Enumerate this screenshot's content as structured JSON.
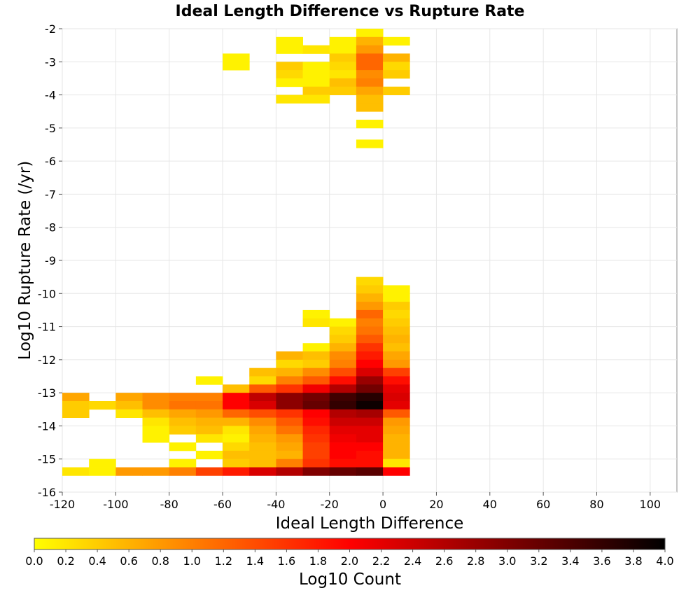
{
  "chart_data": {
    "type": "heatmap",
    "title": "Ideal Length Difference vs Rupture Rate",
    "xlabel": "Ideal Length Difference",
    "ylabel": "Log10 Rupture Rate (/yr)",
    "xlim": [
      -120,
      110
    ],
    "ylim": [
      -16,
      -2
    ],
    "x_ticks": [
      "-120",
      "-100",
      "-80",
      "-60",
      "-40",
      "-20",
      "0",
      "20",
      "40",
      "60",
      "80",
      "100"
    ],
    "y_ticks": [
      "-2",
      "-3",
      "-4",
      "-5",
      "-6",
      "-7",
      "-8",
      "-9",
      "-10",
      "-11",
      "-12",
      "-13",
      "-14",
      "-15",
      "-16"
    ],
    "grid": true,
    "bin_width_x": 10,
    "bin_height_y": 0.25,
    "colorbar": {
      "label": "Log10 Count",
      "range": [
        0.0,
        4.0
      ],
      "ticks": [
        "0.0",
        "0.2",
        "0.4",
        "0.6",
        "0.8",
        "1.0",
        "1.2",
        "1.4",
        "1.6",
        "1.8",
        "2.0",
        "2.2",
        "2.4",
        "2.6",
        "2.8",
        "3.0",
        "3.2",
        "3.4",
        "3.6",
        "3.8",
        "4.0"
      ],
      "colors": [
        "#ffff00",
        "#ff0000",
        "#000000"
      ]
    },
    "cells": [
      {
        "x": -10,
        "y": -2.25,
        "v": 0.1
      },
      {
        "x": -40,
        "y": -2.5,
        "v": 0.1
      },
      {
        "x": -20,
        "y": -2.5,
        "v": 0.1
      },
      {
        "x": -10,
        "y": -2.5,
        "v": 0.6
      },
      {
        "x": 0,
        "y": -2.5,
        "v": 0.1
      },
      {
        "x": -40,
        "y": -2.75,
        "v": 0.1
      },
      {
        "x": -30,
        "y": -2.75,
        "v": 0.2
      },
      {
        "x": -20,
        "y": -2.75,
        "v": 0.1
      },
      {
        "x": -10,
        "y": -2.75,
        "v": 0.8
      },
      {
        "x": -60,
        "y": -3.0,
        "v": 0.1
      },
      {
        "x": -20,
        "y": -3.0,
        "v": 0.4
      },
      {
        "x": -10,
        "y": -3.0,
        "v": 1.2
      },
      {
        "x": 0,
        "y": -3.0,
        "v": 0.6
      },
      {
        "x": -60,
        "y": -3.25,
        "v": 0.1
      },
      {
        "x": -40,
        "y": -3.25,
        "v": 0.4
      },
      {
        "x": -30,
        "y": -3.25,
        "v": 0.1
      },
      {
        "x": -20,
        "y": -3.25,
        "v": 0.3
      },
      {
        "x": -10,
        "y": -3.25,
        "v": 1.2
      },
      {
        "x": 0,
        "y": -3.25,
        "v": 0.3
      },
      {
        "x": -40,
        "y": -3.5,
        "v": 0.3
      },
      {
        "x": -30,
        "y": -3.5,
        "v": 0.1
      },
      {
        "x": -20,
        "y": -3.5,
        "v": 0.2
      },
      {
        "x": -10,
        "y": -3.5,
        "v": 0.9
      },
      {
        "x": 0,
        "y": -3.5,
        "v": 0.4
      },
      {
        "x": -40,
        "y": -3.75,
        "v": 0.1
      },
      {
        "x": -30,
        "y": -3.75,
        "v": 0.1
      },
      {
        "x": -20,
        "y": -3.75,
        "v": 0.5
      },
      {
        "x": -10,
        "y": -3.75,
        "v": 1.0
      },
      {
        "x": -30,
        "y": -4.0,
        "v": 0.4
      },
      {
        "x": -20,
        "y": -4.0,
        "v": 0.4
      },
      {
        "x": -10,
        "y": -4.0,
        "v": 0.7
      },
      {
        "x": 0,
        "y": -4.0,
        "v": 0.4
      },
      {
        "x": -40,
        "y": -4.25,
        "v": 0.2
      },
      {
        "x": -30,
        "y": -4.25,
        "v": 0.2
      },
      {
        "x": -10,
        "y": -4.25,
        "v": 0.5
      },
      {
        "x": -10,
        "y": -4.5,
        "v": 0.5
      },
      {
        "x": -10,
        "y": -5.0,
        "v": 0.1
      },
      {
        "x": -10,
        "y": -5.6,
        "v": 0.1
      },
      {
        "x": -10,
        "y": -9.75,
        "v": 0.3
      },
      {
        "x": -10,
        "y": -10.0,
        "v": 0.4
      },
      {
        "x": 0,
        "y": -10.0,
        "v": 0.1
      },
      {
        "x": -10,
        "y": -10.25,
        "v": 0.6
      },
      {
        "x": 0,
        "y": -10.25,
        "v": 0.1
      },
      {
        "x": -10,
        "y": -10.5,
        "v": 0.8
      },
      {
        "x": 0,
        "y": -10.5,
        "v": 0.4
      },
      {
        "x": -30,
        "y": -10.75,
        "v": 0.1
      },
      {
        "x": -10,
        "y": -10.75,
        "v": 1.2
      },
      {
        "x": 0,
        "y": -10.75,
        "v": 0.3
      },
      {
        "x": -30,
        "y": -11.0,
        "v": 0.2
      },
      {
        "x": -20,
        "y": -11.0,
        "v": 0.1
      },
      {
        "x": -10,
        "y": -11.0,
        "v": 1.0
      },
      {
        "x": 0,
        "y": -11.0,
        "v": 0.4
      },
      {
        "x": -20,
        "y": -11.25,
        "v": 0.3
      },
      {
        "x": -10,
        "y": -11.25,
        "v": 1.1
      },
      {
        "x": 0,
        "y": -11.25,
        "v": 0.5
      },
      {
        "x": -20,
        "y": -11.5,
        "v": 0.4
      },
      {
        "x": -10,
        "y": -11.5,
        "v": 1.3
      },
      {
        "x": 0,
        "y": -11.5,
        "v": 0.6
      },
      {
        "x": -30,
        "y": -11.75,
        "v": 0.1
      },
      {
        "x": -20,
        "y": -11.75,
        "v": 0.6
      },
      {
        "x": -10,
        "y": -11.75,
        "v": 1.6
      },
      {
        "x": 0,
        "y": -11.75,
        "v": 0.5
      },
      {
        "x": -40,
        "y": -12.0,
        "v": 0.6
      },
      {
        "x": -30,
        "y": -12.0,
        "v": 0.5
      },
      {
        "x": -20,
        "y": -12.0,
        "v": 0.9
      },
      {
        "x": -10,
        "y": -12.0,
        "v": 1.8
      },
      {
        "x": 0,
        "y": -12.0,
        "v": 0.7
      },
      {
        "x": -40,
        "y": -12.25,
        "v": 0.3
      },
      {
        "x": -30,
        "y": -12.25,
        "v": 0.4
      },
      {
        "x": -20,
        "y": -12.25,
        "v": 1.0
      },
      {
        "x": -10,
        "y": -12.25,
        "v": 2.0
      },
      {
        "x": 0,
        "y": -12.25,
        "v": 0.8
      },
      {
        "x": -50,
        "y": -12.5,
        "v": 0.5
      },
      {
        "x": -40,
        "y": -12.5,
        "v": 0.6
      },
      {
        "x": -30,
        "y": -12.5,
        "v": 0.9
      },
      {
        "x": -20,
        "y": -12.5,
        "v": 1.4
      },
      {
        "x": -10,
        "y": -12.5,
        "v": 2.3
      },
      {
        "x": 0,
        "y": -12.5,
        "v": 1.5
      },
      {
        "x": -70,
        "y": -12.75,
        "v": 0.1
      },
      {
        "x": -50,
        "y": -12.75,
        "v": 0.3
      },
      {
        "x": -40,
        "y": -12.75,
        "v": 1.0
      },
      {
        "x": -30,
        "y": -12.75,
        "v": 1.3
      },
      {
        "x": -20,
        "y": -12.75,
        "v": 1.9
      },
      {
        "x": -10,
        "y": -12.75,
        "v": 2.8
      },
      {
        "x": 0,
        "y": -12.75,
        "v": 1.9
      },
      {
        "x": -60,
        "y": -13.0,
        "v": 0.5
      },
      {
        "x": -50,
        "y": -13.0,
        "v": 1.3
      },
      {
        "x": -40,
        "y": -13.0,
        "v": 1.6
      },
      {
        "x": -30,
        "y": -13.0,
        "v": 2.1
      },
      {
        "x": -20,
        "y": -13.0,
        "v": 2.6
      },
      {
        "x": -10,
        "y": -13.0,
        "v": 3.1
      },
      {
        "x": 0,
        "y": -13.0,
        "v": 2.2
      },
      {
        "x": -120,
        "y": -13.25,
        "v": 0.7
      },
      {
        "x": -100,
        "y": -13.25,
        "v": 0.7
      },
      {
        "x": -90,
        "y": -13.25,
        "v": 0.9
      },
      {
        "x": -80,
        "y": -13.25,
        "v": 1.0
      },
      {
        "x": -70,
        "y": -13.25,
        "v": 1.0
      },
      {
        "x": -60,
        "y": -13.25,
        "v": 2.0
      },
      {
        "x": -50,
        "y": -13.25,
        "v": 2.5
      },
      {
        "x": -40,
        "y": -13.25,
        "v": 2.9
      },
      {
        "x": -30,
        "y": -13.25,
        "v": 3.1
      },
      {
        "x": -20,
        "y": -13.25,
        "v": 3.5
      },
      {
        "x": -10,
        "y": -13.25,
        "v": 3.7
      },
      {
        "x": 0,
        "y": -13.25,
        "v": 2.3
      },
      {
        "x": -120,
        "y": -13.5,
        "v": 0.4
      },
      {
        "x": -110,
        "y": -13.5,
        "v": 0.3
      },
      {
        "x": -100,
        "y": -13.5,
        "v": 0.5
      },
      {
        "x": -90,
        "y": -13.5,
        "v": 0.9
      },
      {
        "x": -80,
        "y": -13.5,
        "v": 1.1
      },
      {
        "x": -70,
        "y": -13.5,
        "v": 1.1
      },
      {
        "x": -60,
        "y": -13.5,
        "v": 2.0
      },
      {
        "x": -50,
        "y": -13.5,
        "v": 2.3
      },
      {
        "x": -40,
        "y": -13.5,
        "v": 2.9
      },
      {
        "x": -30,
        "y": -13.5,
        "v": 3.2
      },
      {
        "x": -20,
        "y": -13.5,
        "v": 3.6
      },
      {
        "x": -10,
        "y": -13.5,
        "v": 3.9
      },
      {
        "x": 0,
        "y": -13.5,
        "v": 2.2
      },
      {
        "x": -120,
        "y": -13.75,
        "v": 0.4
      },
      {
        "x": -100,
        "y": -13.75,
        "v": 0.2
      },
      {
        "x": -90,
        "y": -13.75,
        "v": 0.5
      },
      {
        "x": -80,
        "y": -13.75,
        "v": 0.7
      },
      {
        "x": -70,
        "y": -13.75,
        "v": 0.8
      },
      {
        "x": -60,
        "y": -13.75,
        "v": 1.2
      },
      {
        "x": -50,
        "y": -13.75,
        "v": 1.4
      },
      {
        "x": -40,
        "y": -13.75,
        "v": 1.6
      },
      {
        "x": -30,
        "y": -13.75,
        "v": 2.0
      },
      {
        "x": -20,
        "y": -13.75,
        "v": 2.6
      },
      {
        "x": -10,
        "y": -13.75,
        "v": 2.7
      },
      {
        "x": 0,
        "y": -13.75,
        "v": 1.3
      },
      {
        "x": -90,
        "y": -14.0,
        "v": 0.2
      },
      {
        "x": -80,
        "y": -14.0,
        "v": 0.5
      },
      {
        "x": -70,
        "y": -14.0,
        "v": 0.6
      },
      {
        "x": -60,
        "y": -14.0,
        "v": 0.6
      },
      {
        "x": -50,
        "y": -14.0,
        "v": 0.9
      },
      {
        "x": -40,
        "y": -14.0,
        "v": 1.3
      },
      {
        "x": -30,
        "y": -14.0,
        "v": 1.9
      },
      {
        "x": -20,
        "y": -14.0,
        "v": 2.4
      },
      {
        "x": -10,
        "y": -14.0,
        "v": 2.4
      },
      {
        "x": 0,
        "y": -14.0,
        "v": 0.8
      },
      {
        "x": -90,
        "y": -14.25,
        "v": 0.1
      },
      {
        "x": -80,
        "y": -14.25,
        "v": 0.4
      },
      {
        "x": -70,
        "y": -14.25,
        "v": 0.5
      },
      {
        "x": -60,
        "y": -14.25,
        "v": 0.2
      },
      {
        "x": -50,
        "y": -14.25,
        "v": 0.7
      },
      {
        "x": -40,
        "y": -14.25,
        "v": 1.1
      },
      {
        "x": -30,
        "y": -14.25,
        "v": 1.7
      },
      {
        "x": -20,
        "y": -14.25,
        "v": 2.2
      },
      {
        "x": -10,
        "y": -14.25,
        "v": 2.2
      },
      {
        "x": 0,
        "y": -14.25,
        "v": 0.7
      },
      {
        "x": -90,
        "y": -14.5,
        "v": 0.1
      },
      {
        "x": -70,
        "y": -14.5,
        "v": 0.2
      },
      {
        "x": -60,
        "y": -14.5,
        "v": 0.1
      },
      {
        "x": -50,
        "y": -14.5,
        "v": 0.6
      },
      {
        "x": -40,
        "y": -14.5,
        "v": 0.8
      },
      {
        "x": -30,
        "y": -14.5,
        "v": 1.6
      },
      {
        "x": -20,
        "y": -14.5,
        "v": 2.1
      },
      {
        "x": -10,
        "y": -14.5,
        "v": 2.2
      },
      {
        "x": 0,
        "y": -14.5,
        "v": 0.6
      },
      {
        "x": -80,
        "y": -14.75,
        "v": 0.1
      },
      {
        "x": -60,
        "y": -14.75,
        "v": 0.3
      },
      {
        "x": -50,
        "y": -14.75,
        "v": 0.5
      },
      {
        "x": -40,
        "y": -14.75,
        "v": 0.7
      },
      {
        "x": -30,
        "y": -14.75,
        "v": 1.5
      },
      {
        "x": -20,
        "y": -14.75,
        "v": 2.0
      },
      {
        "x": -10,
        "y": -14.75,
        "v": 2.0
      },
      {
        "x": 0,
        "y": -14.75,
        "v": 0.6
      },
      {
        "x": -70,
        "y": -15.0,
        "v": 0.1
      },
      {
        "x": -60,
        "y": -15.0,
        "v": 0.5
      },
      {
        "x": -50,
        "y": -15.0,
        "v": 0.5
      },
      {
        "x": -40,
        "y": -15.0,
        "v": 0.6
      },
      {
        "x": -30,
        "y": -15.0,
        "v": 1.5
      },
      {
        "x": -20,
        "y": -15.0,
        "v": 2.0
      },
      {
        "x": -10,
        "y": -15.0,
        "v": 1.9
      },
      {
        "x": 0,
        "y": -15.0,
        "v": 0.6
      },
      {
        "x": -110,
        "y": -15.25,
        "v": 0.1
      },
      {
        "x": -80,
        "y": -15.25,
        "v": 0.1
      },
      {
        "x": -60,
        "y": -15.25,
        "v": 0.4
      },
      {
        "x": -50,
        "y": -15.25,
        "v": 0.5
      },
      {
        "x": -40,
        "y": -15.25,
        "v": 1.0
      },
      {
        "x": -30,
        "y": -15.25,
        "v": 1.6
      },
      {
        "x": -20,
        "y": -15.25,
        "v": 1.9
      },
      {
        "x": -10,
        "y": -15.25,
        "v": 1.9
      },
      {
        "x": 0,
        "y": -15.25,
        "v": 0.2
      },
      {
        "x": -120,
        "y": -15.5,
        "v": 0.2
      },
      {
        "x": -110,
        "y": -15.5,
        "v": 0.1
      },
      {
        "x": -100,
        "y": -15.5,
        "v": 0.8
      },
      {
        "x": -90,
        "y": -15.5,
        "v": 0.8
      },
      {
        "x": -80,
        "y": -15.5,
        "v": 1.0
      },
      {
        "x": -70,
        "y": -15.5,
        "v": 1.5
      },
      {
        "x": -60,
        "y": -15.5,
        "v": 1.8
      },
      {
        "x": -50,
        "y": -15.5,
        "v": 2.3
      },
      {
        "x": -40,
        "y": -15.5,
        "v": 2.6
      },
      {
        "x": -30,
        "y": -15.5,
        "v": 3.0
      },
      {
        "x": -20,
        "y": -15.5,
        "v": 3.2
      },
      {
        "x": -10,
        "y": -15.5,
        "v": 3.3
      },
      {
        "x": 0,
        "y": -15.5,
        "v": 2.0
      }
    ]
  }
}
